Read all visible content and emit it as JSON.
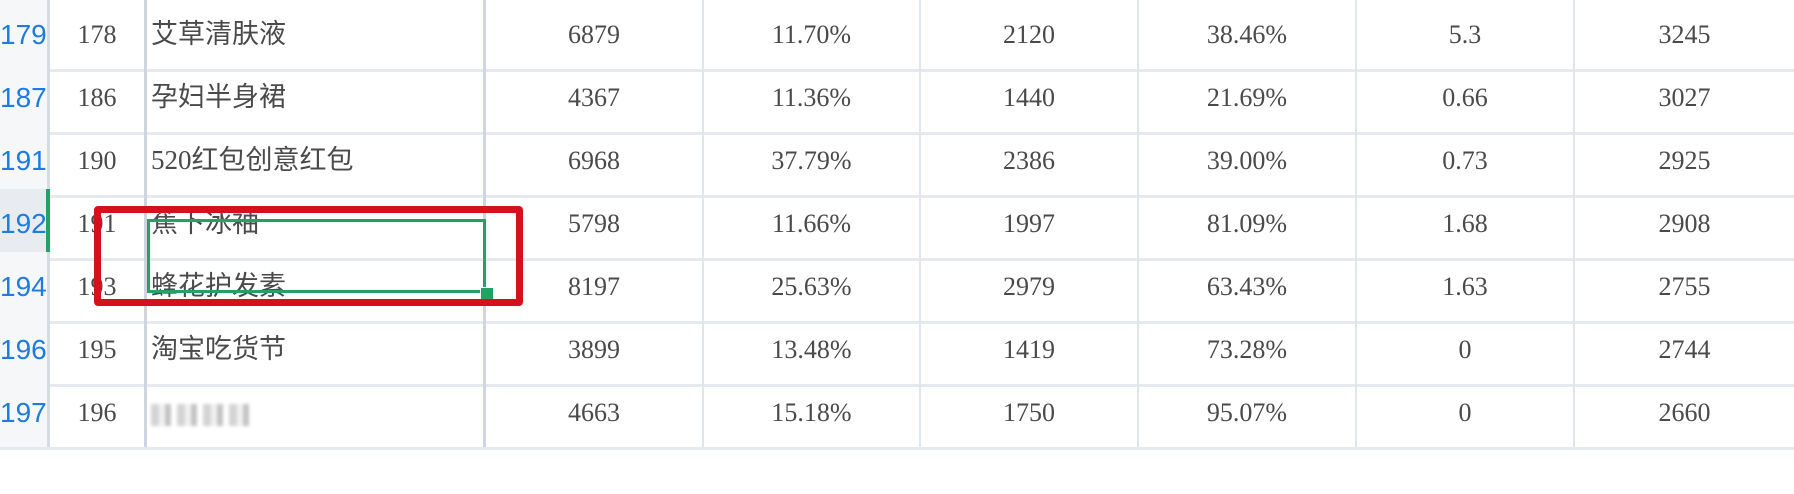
{
  "rows": [
    {
      "row_number": "179",
      "seq": "178",
      "name": "艾草清肤液",
      "v1": "6879",
      "v2": "11.70%",
      "v3": "2120",
      "v4": "38.46%",
      "v5": "5.3",
      "v6": "3245"
    },
    {
      "row_number": "187",
      "seq": "186",
      "name": "孕妇半身裙",
      "v1": "4367",
      "v2": "11.36%",
      "v3": "1440",
      "v4": "21.69%",
      "v5": "0.66",
      "v6": "3027"
    },
    {
      "row_number": "191",
      "seq": "190",
      "name": "520红包创意红包",
      "v1": "6968",
      "v2": "37.79%",
      "v3": "2386",
      "v4": "39.00%",
      "v5": "0.73",
      "v6": "2925"
    },
    {
      "row_number": "192",
      "seq": "191",
      "name": "蕉下冰袖",
      "v1": "5798",
      "v2": "11.66%",
      "v3": "1997",
      "v4": "81.09%",
      "v5": "1.68",
      "v6": "2908"
    },
    {
      "row_number": "194",
      "seq": "193",
      "name": "蜂花护发素",
      "v1": "8197",
      "v2": "25.63%",
      "v3": "2979",
      "v4": "63.43%",
      "v5": "1.63",
      "v6": "2755"
    },
    {
      "row_number": "196",
      "seq": "195",
      "name": "淘宝吃货节",
      "v1": "3899",
      "v2": "13.48%",
      "v3": "1419",
      "v4": "73.28%",
      "v5": "0",
      "v6": "2744"
    },
    {
      "row_number": "197",
      "seq": "196",
      "name": "",
      "v1": "4663",
      "v2": "15.18%",
      "v3": "1750",
      "v4": "95.07%",
      "v5": "0",
      "v6": "2660"
    }
  ],
  "selected_row_index": 3,
  "colors": {
    "row_number_text": "#1e7be0",
    "selection_green": "#21a366",
    "annotation_red": "#d5121b",
    "cell_text": "#4a4a4a",
    "grid_line": "#e1e5ec"
  }
}
